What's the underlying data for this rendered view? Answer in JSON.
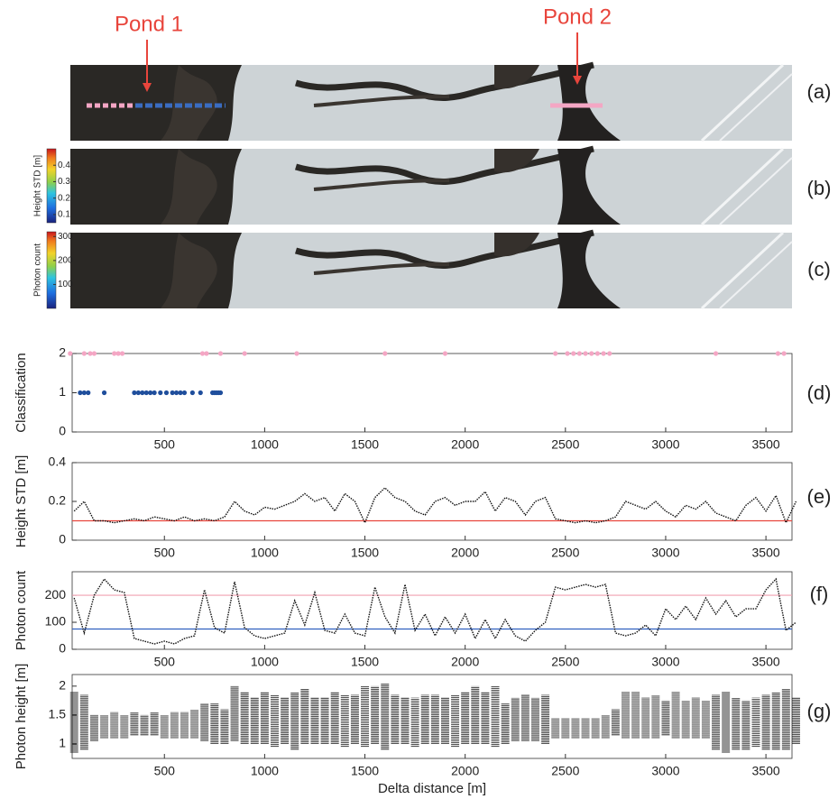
{
  "figure": {
    "annotations": [
      "Pond 1",
      "Pond 2"
    ],
    "panel_labels": [
      "(a)",
      "(b)",
      "(c)",
      "(d)",
      "(e)",
      "(f)",
      "(g)"
    ],
    "colorbars": [
      {
        "label": "Height STD [m]",
        "lim": [
          0.05,
          0.5
        ],
        "ticks": [
          0.1,
          0.2,
          0.3,
          0.4
        ]
      },
      {
        "label": "Photon count",
        "lim": [
          0,
          320
        ],
        "ticks": [
          100,
          200,
          300
        ]
      }
    ]
  },
  "chart_data": [
    {
      "type": "scatter",
      "ylabel": "Classification",
      "xlim": [
        40,
        3630
      ],
      "ylim": [
        0,
        2
      ],
      "xticks": [
        500,
        1000,
        1500,
        2000,
        2500,
        3000,
        3500
      ],
      "yticks": [
        0,
        1,
        2
      ],
      "series": [
        {
          "color": "#f4a6c4",
          "x": [
            30,
            100,
            130,
            150,
            250,
            270,
            290,
            690,
            710,
            780,
            900,
            1160,
            1600,
            1900,
            2450,
            2510,
            2540,
            2570,
            2600,
            2630,
            2660,
            2690,
            2720,
            3250,
            3560,
            3590
          ],
          "values": [
            2,
            2,
            2,
            2,
            2,
            2,
            2,
            2,
            2,
            2,
            2,
            2,
            2,
            2,
            2,
            2,
            2,
            2,
            2,
            2,
            2,
            2,
            2,
            2,
            2,
            2
          ]
        },
        {
          "color": "#1f4e9c",
          "x": [
            80,
            100,
            120,
            200,
            350,
            370,
            390,
            410,
            430,
            450,
            480,
            510,
            540,
            560,
            580,
            600,
            640,
            680,
            740,
            750,
            760,
            770,
            780
          ],
          "values": [
            1,
            1,
            1,
            1,
            1,
            1,
            1,
            1,
            1,
            1,
            1,
            1,
            1,
            1,
            1,
            1,
            1,
            1,
            1,
            1,
            1,
            1,
            1
          ]
        }
      ]
    },
    {
      "type": "line",
      "ylabel": "Height STD [m]",
      "xlim": [
        40,
        3630
      ],
      "ylim": [
        0,
        0.4
      ],
      "xticks": [
        500,
        1000,
        1500,
        2000,
        2500,
        3000,
        3500
      ],
      "yticks": [
        0,
        0.2,
        0.4
      ],
      "color": "#111111",
      "hlines": [
        {
          "value": 0.1,
          "color": "#e8453c"
        }
      ],
      "x": [
        50,
        100,
        150,
        200,
        250,
        300,
        350,
        400,
        450,
        500,
        550,
        600,
        650,
        700,
        750,
        800,
        850,
        900,
        950,
        1000,
        1050,
        1100,
        1150,
        1200,
        1250,
        1300,
        1350,
        1400,
        1450,
        1500,
        1550,
        1600,
        1650,
        1700,
        1750,
        1800,
        1850,
        1900,
        1950,
        2000,
        2050,
        2100,
        2150,
        2200,
        2250,
        2300,
        2350,
        2400,
        2450,
        2500,
        2550,
        2600,
        2650,
        2700,
        2750,
        2800,
        2850,
        2900,
        2950,
        3000,
        3050,
        3100,
        3150,
        3200,
        3250,
        3300,
        3350,
        3400,
        3450,
        3500,
        3550,
        3600,
        3650
      ],
      "values": [
        0.15,
        0.2,
        0.1,
        0.1,
        0.09,
        0.1,
        0.11,
        0.1,
        0.12,
        0.11,
        0.1,
        0.12,
        0.1,
        0.11,
        0.1,
        0.12,
        0.2,
        0.15,
        0.13,
        0.17,
        0.16,
        0.18,
        0.2,
        0.24,
        0.2,
        0.22,
        0.15,
        0.24,
        0.2,
        0.09,
        0.22,
        0.27,
        0.22,
        0.2,
        0.15,
        0.13,
        0.2,
        0.22,
        0.18,
        0.2,
        0.2,
        0.25,
        0.15,
        0.22,
        0.2,
        0.13,
        0.2,
        0.22,
        0.11,
        0.1,
        0.09,
        0.1,
        0.09,
        0.1,
        0.12,
        0.2,
        0.18,
        0.16,
        0.2,
        0.15,
        0.12,
        0.18,
        0.16,
        0.2,
        0.14,
        0.12,
        0.1,
        0.18,
        0.22,
        0.15,
        0.23,
        0.09,
        0.2
      ]
    },
    {
      "type": "line",
      "ylabel": "Photon count",
      "xlim": [
        40,
        3630
      ],
      "ylim": [
        0,
        287
      ],
      "xticks": [
        500,
        1000,
        1500,
        2000,
        2500,
        3000,
        3500
      ],
      "yticks": [
        0,
        100,
        200
      ],
      "color": "#111111",
      "hlines": [
        {
          "value": 200,
          "color": "#f0a0b0"
        },
        {
          "value": 75,
          "color": "#3060c0"
        }
      ],
      "x": [
        50,
        100,
        150,
        200,
        250,
        300,
        350,
        400,
        450,
        500,
        550,
        600,
        650,
        700,
        750,
        800,
        850,
        900,
        950,
        1000,
        1050,
        1100,
        1150,
        1200,
        1250,
        1300,
        1350,
        1400,
        1450,
        1500,
        1550,
        1600,
        1650,
        1700,
        1750,
        1800,
        1850,
        1900,
        1950,
        2000,
        2050,
        2100,
        2150,
        2200,
        2250,
        2300,
        2350,
        2400,
        2450,
        2500,
        2550,
        2600,
        2650,
        2700,
        2750,
        2800,
        2850,
        2900,
        2950,
        3000,
        3050,
        3100,
        3150,
        3200,
        3250,
        3300,
        3350,
        3400,
        3450,
        3500,
        3550,
        3600,
        3650
      ],
      "values": [
        190,
        60,
        200,
        260,
        220,
        210,
        40,
        30,
        20,
        30,
        20,
        40,
        50,
        220,
        80,
        60,
        250,
        80,
        50,
        40,
        50,
        60,
        180,
        90,
        210,
        70,
        60,
        130,
        60,
        50,
        230,
        120,
        60,
        240,
        70,
        130,
        50,
        120,
        60,
        130,
        40,
        110,
        40,
        110,
        50,
        30,
        70,
        100,
        230,
        220,
        230,
        240,
        230,
        240,
        60,
        50,
        60,
        90,
        50,
        150,
        110,
        160,
        110,
        190,
        130,
        180,
        120,
        150,
        150,
        220,
        260,
        70,
        100
      ]
    },
    {
      "type": "range",
      "ylabel": "Photon height [m]",
      "xlabel": "Delta distance [m]",
      "xlim": [
        40,
        3630
      ],
      "ylim": [
        0.75,
        2.2
      ],
      "xticks": [
        500,
        1000,
        1500,
        2000,
        2500,
        3000,
        3500
      ],
      "yticks": [
        1,
        1.5,
        2
      ],
      "color": "#111111",
      "x": [
        50,
        100,
        150,
        200,
        250,
        300,
        350,
        400,
        450,
        500,
        550,
        600,
        650,
        700,
        750,
        800,
        850,
        900,
        950,
        1000,
        1050,
        1100,
        1150,
        1200,
        1250,
        1300,
        1350,
        1400,
        1450,
        1500,
        1550,
        1600,
        1650,
        1700,
        1750,
        1800,
        1850,
        1900,
        1950,
        2000,
        2050,
        2100,
        2150,
        2200,
        2250,
        2300,
        2350,
        2400,
        2450,
        2500,
        2550,
        2600,
        2650,
        2700,
        2750,
        2800,
        2850,
        2900,
        2950,
        3000,
        3050,
        3100,
        3150,
        3200,
        3250,
        3300,
        3350,
        3400,
        3450,
        3500,
        3550,
        3600,
        3650
      ],
      "low": [
        0.85,
        0.9,
        1.05,
        1.1,
        1.1,
        1.1,
        1.15,
        1.15,
        1.15,
        1.1,
        1.1,
        1.1,
        1.1,
        1.05,
        1.0,
        1.0,
        1.05,
        1.0,
        1.0,
        1.0,
        0.95,
        1.0,
        0.9,
        1.0,
        1.0,
        1.0,
        1.0,
        0.95,
        1.0,
        0.95,
        1.0,
        0.9,
        1.0,
        1.0,
        0.95,
        1.0,
        1.0,
        1.0,
        0.95,
        1.0,
        1.0,
        1.0,
        0.95,
        1.0,
        1.05,
        1.05,
        1.05,
        1.0,
        1.1,
        1.1,
        1.1,
        1.1,
        1.1,
        1.1,
        1.15,
        1.1,
        1.1,
        1.1,
        1.1,
        1.15,
        1.1,
        1.1,
        1.1,
        1.1,
        0.9,
        0.85,
        0.9,
        0.9,
        0.95,
        0.9,
        0.9,
        0.9,
        1.0
      ],
      "high": [
        1.9,
        1.85,
        1.5,
        1.5,
        1.55,
        1.5,
        1.55,
        1.5,
        1.55,
        1.5,
        1.55,
        1.55,
        1.6,
        1.7,
        1.7,
        1.6,
        2.0,
        1.9,
        1.8,
        1.9,
        1.85,
        1.8,
        1.9,
        1.95,
        1.8,
        1.8,
        1.9,
        1.85,
        1.85,
        2.0,
        2.0,
        2.05,
        1.85,
        1.8,
        1.8,
        1.85,
        1.85,
        1.8,
        1.85,
        1.9,
        2.0,
        1.9,
        2.0,
        1.7,
        1.8,
        1.85,
        1.8,
        1.85,
        1.45,
        1.45,
        1.45,
        1.45,
        1.45,
        1.5,
        1.6,
        1.9,
        1.9,
        1.8,
        1.85,
        1.75,
        1.9,
        1.75,
        1.8,
        1.75,
        1.85,
        1.9,
        1.8,
        1.75,
        1.8,
        1.85,
        1.9,
        1.95,
        1.8
      ]
    }
  ]
}
